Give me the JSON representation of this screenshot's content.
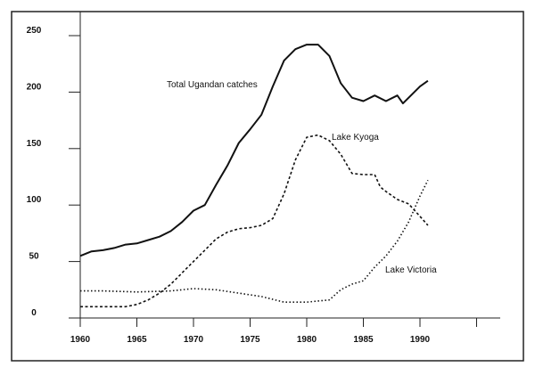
{
  "chart_data": {
    "type": "line",
    "title": "",
    "xlabel": "",
    "ylabel": "",
    "xlim": [
      1960,
      1995
    ],
    "ylim": [
      0,
      250
    ],
    "grid": false,
    "legend": "inline labels",
    "x_ticks": [
      "1960",
      "1965",
      "1970",
      "1975",
      "1980",
      "1985",
      "1990",
      ""
    ],
    "x_tick_values": [
      1960,
      1965,
      1970,
      1975,
      1980,
      1985,
      1990,
      1995
    ],
    "y_ticks": [
      "0",
      "50",
      "100",
      "150",
      "200",
      "250"
    ],
    "y_tick_values": [
      0,
      50,
      100,
      150,
      200,
      250
    ],
    "series": [
      {
        "name": "Total Ugandan catches",
        "style": "solid",
        "color": "#111111",
        "x": [
          1960,
          1961,
          1962,
          1963,
          1964,
          1965,
          1966,
          1967,
          1968,
          1969,
          1970,
          1971,
          1972,
          1973,
          1974,
          1975,
          1976,
          1977,
          1978,
          1979,
          1980,
          1981,
          1982,
          1983,
          1984,
          1985,
          1986,
          1987,
          1988,
          1988.5,
          1989,
          1990,
          1990.7
        ],
        "y": [
          55,
          59,
          60,
          62,
          65,
          66,
          69,
          72,
          77,
          85,
          95,
          100,
          118,
          135,
          155,
          167,
          180,
          205,
          228,
          238,
          242,
          242,
          232,
          208,
          195,
          192,
          197,
          192,
          197,
          190,
          195,
          205,
          210
        ]
      },
      {
        "name": "Lake Kyoga",
        "style": "dashed",
        "color": "#111111",
        "x": [
          1960,
          1962,
          1964,
          1965,
          1966,
          1967,
          1968,
          1969,
          1970,
          1971,
          1972,
          1973,
          1974,
          1975,
          1976,
          1977,
          1978,
          1979,
          1980,
          1981,
          1982,
          1983,
          1984,
          1985,
          1986,
          1986.5,
          1987,
          1988,
          1989,
          1990,
          1990.7
        ],
        "y": [
          10,
          10,
          10,
          12,
          16,
          22,
          30,
          40,
          50,
          60,
          70,
          76,
          79,
          80,
          82,
          88,
          110,
          140,
          160,
          162,
          157,
          145,
          128,
          127,
          127,
          116,
          112,
          105,
          101,
          90,
          82
        ]
      },
      {
        "name": "Lake Victoria",
        "style": "dotted",
        "color": "#111111",
        "x": [
          1960,
          1962,
          1965,
          1968,
          1970,
          1972,
          1974,
          1976,
          1978,
          1980,
          1982,
          1983,
          1984,
          1985,
          1986,
          1987,
          1988,
          1989,
          1990,
          1990.7
        ],
        "y": [
          24,
          24,
          23,
          24,
          26,
          25,
          22,
          19,
          14,
          14,
          16,
          25,
          30,
          33,
          45,
          55,
          68,
          85,
          108,
          122
        ]
      }
    ],
    "annotations": [
      {
        "text": "Total Ugandan catches",
        "series": 0
      },
      {
        "text": "Lake Kyoga",
        "series": 1
      },
      {
        "text": "Lake Victoria",
        "series": 2
      }
    ]
  }
}
